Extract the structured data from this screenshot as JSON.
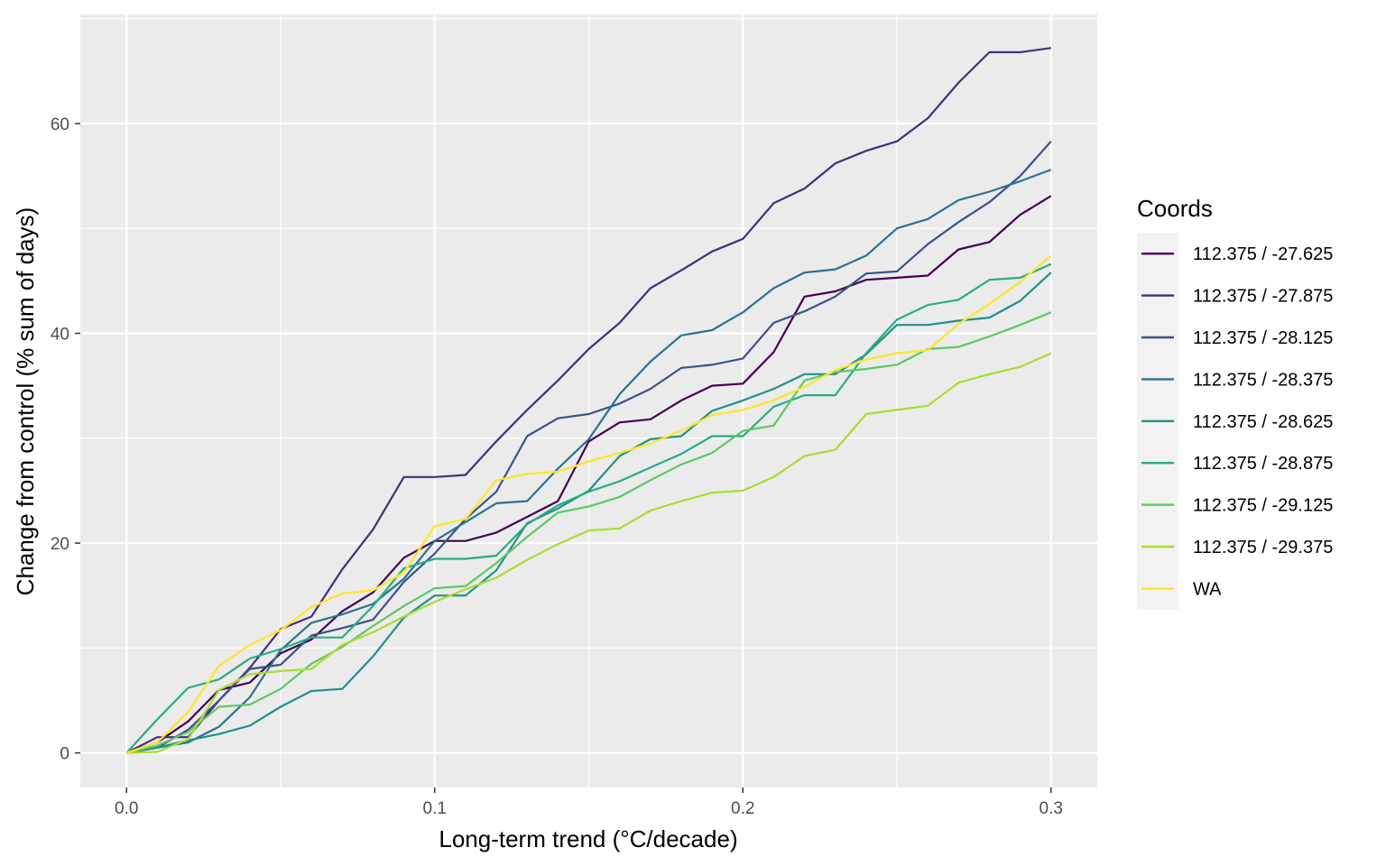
{
  "chart_data": {
    "type": "line",
    "xlabel": "Long-term trend (°C/decade)",
    "ylabel": "Change from control (% sum of days)",
    "xlim": [
      -0.015,
      0.315
    ],
    "ylim": [
      -3.3,
      70.4
    ],
    "x_ticks": [
      0.0,
      0.1,
      0.2,
      0.3
    ],
    "x_tick_labels": [
      "0.0",
      "0.1",
      "0.2",
      "0.3"
    ],
    "y_ticks": [
      0,
      20,
      40,
      60
    ],
    "y_tick_labels": [
      "0",
      "20",
      "40",
      "60"
    ],
    "grid": true,
    "legend_title": "Coords",
    "legend_position": "right",
    "x": [
      0.0,
      0.01,
      0.02,
      0.03,
      0.04,
      0.05,
      0.06,
      0.07,
      0.08,
      0.09,
      0.1,
      0.11,
      0.12,
      0.13,
      0.14,
      0.15,
      0.16,
      0.17,
      0.18,
      0.19,
      0.2,
      0.21,
      0.22,
      0.23,
      0.24,
      0.25,
      0.26,
      0.27,
      0.28,
      0.29,
      0.3
    ],
    "series": [
      {
        "name": "112.375 / -27.625",
        "color": "#440154",
        "values": [
          0,
          1.0,
          3.0,
          6.0,
          6.7,
          9.5,
          10.8,
          13.5,
          15.3,
          18.6,
          20.2,
          20.2,
          21.0,
          22.5,
          24.0,
          29.7,
          31.5,
          31.8,
          33.6,
          35.0,
          35.2,
          38.2,
          43.5,
          44.0,
          45.1,
          45.3,
          45.5,
          48.0,
          48.7,
          51.3,
          53.1
        ]
      },
      {
        "name": "112.375 / -27.875",
        "color": "#472D7B",
        "values": [
          0,
          1.5,
          1.5,
          5.0,
          8.1,
          11.8,
          13.0,
          17.5,
          21.3,
          26.3,
          26.3,
          26.5,
          29.7,
          32.7,
          35.5,
          38.5,
          41.0,
          44.3,
          46.0,
          47.8,
          49.0,
          52.4,
          53.8,
          56.2,
          57.4,
          58.3,
          60.5,
          63.9,
          66.8,
          66.8,
          67.2
        ]
      },
      {
        "name": "112.375 / -28.125",
        "color": "#3B528B",
        "values": [
          0,
          0.5,
          2.2,
          5.0,
          8.0,
          8.4,
          11.2,
          11.9,
          12.7,
          16.3,
          19.0,
          22.3,
          24.9,
          30.2,
          31.9,
          32.3,
          33.3,
          34.7,
          36.7,
          37.0,
          37.6,
          41.0,
          42.1,
          43.5,
          45.7,
          45.9,
          48.5,
          50.6,
          52.5,
          55.0,
          58.3
        ]
      },
      {
        "name": "112.375 / -28.375",
        "color": "#2C728E",
        "values": [
          0,
          0.5,
          1.0,
          2.5,
          5.3,
          9.8,
          12.4,
          13.2,
          14.2,
          16.6,
          20.2,
          22.0,
          23.8,
          24.0,
          27.1,
          29.9,
          34.2,
          37.3,
          39.8,
          40.3,
          42.0,
          44.3,
          45.8,
          46.1,
          47.4,
          50.0,
          50.9,
          52.7,
          53.5,
          54.5,
          55.6
        ]
      },
      {
        "name": "112.375 / -28.625",
        "color": "#21908C",
        "values": [
          0,
          0.5,
          1.2,
          1.8,
          2.6,
          4.4,
          5.9,
          6.1,
          9.2,
          12.9,
          15.0,
          15.0,
          17.4,
          21.9,
          23.3,
          25.0,
          28.3,
          29.9,
          30.2,
          32.6,
          33.6,
          34.7,
          36.1,
          36.1,
          38.0,
          40.8,
          40.8,
          41.2,
          41.5,
          43.1,
          45.8
        ]
      },
      {
        "name": "112.375 / -28.875",
        "color": "#27AD81",
        "values": [
          0,
          3.2,
          6.2,
          7.0,
          9.0,
          9.9,
          11.0,
          11.0,
          14.0,
          17.6,
          18.5,
          18.5,
          18.8,
          21.8,
          23.6,
          24.9,
          25.9,
          27.2,
          28.5,
          30.2,
          30.2,
          33.0,
          34.1,
          34.1,
          38.1,
          41.3,
          42.7,
          43.2,
          45.1,
          45.3,
          46.6
        ]
      },
      {
        "name": "112.375 / -29.125",
        "color": "#5DC863",
        "values": [
          0,
          0.7,
          2.0,
          4.4,
          4.6,
          6.1,
          8.5,
          10.1,
          12.1,
          14.0,
          15.7,
          15.9,
          18.1,
          20.6,
          22.9,
          23.5,
          24.4,
          26.0,
          27.5,
          28.6,
          30.7,
          31.2,
          35.5,
          36.3,
          36.6,
          37.0,
          38.5,
          38.7,
          39.7,
          40.8,
          42.0
        ]
      },
      {
        "name": "112.375 / -29.375",
        "color": "#AADC32",
        "values": [
          0,
          0.1,
          1.3,
          6.0,
          7.5,
          7.8,
          8.0,
          10.3,
          11.5,
          13.0,
          14.4,
          15.6,
          16.7,
          18.4,
          19.9,
          21.2,
          21.4,
          23.1,
          24.0,
          24.8,
          25.0,
          26.3,
          28.3,
          28.9,
          32.3,
          32.7,
          33.1,
          35.3,
          36.1,
          36.8,
          38.1
        ]
      },
      {
        "name": "WA",
        "color": "#FDE725",
        "values": [
          0,
          1.0,
          3.9,
          8.3,
          10.3,
          11.7,
          13.9,
          15.2,
          15.5,
          17.2,
          21.6,
          22.3,
          26.0,
          26.6,
          26.8,
          27.8,
          28.6,
          29.5,
          30.7,
          32.2,
          32.7,
          33.6,
          34.9,
          36.5,
          37.5,
          38.1,
          38.4,
          40.9,
          42.8,
          44.9,
          47.4
        ]
      }
    ]
  }
}
